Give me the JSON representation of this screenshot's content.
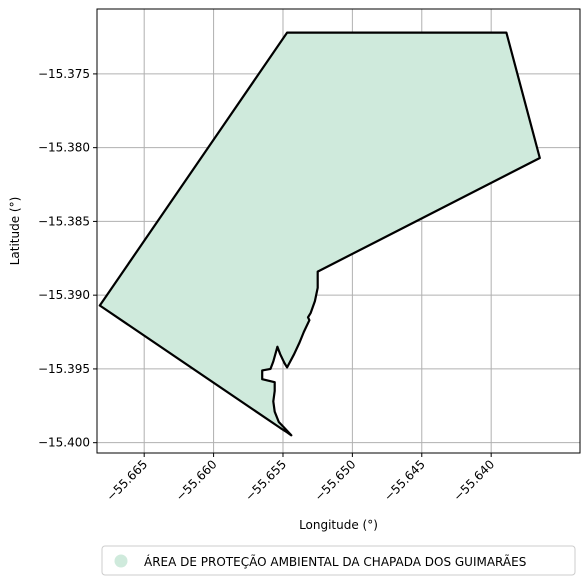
{
  "chart_data": {
    "type": "map",
    "xlabel": "Longitude (°)",
    "ylabel": "Latitude (°)",
    "xlim": [
      -55.6684,
      -55.6336
    ],
    "ylim": [
      -15.4007,
      -15.3706
    ],
    "grid": true,
    "x_ticks": [
      -55.665,
      -55.66,
      -55.655,
      -55.65,
      -55.645,
      -55.64
    ],
    "x_tick_labels": [
      "−55.665",
      "−55.660",
      "−55.655",
      "−55.650",
      "−55.645",
      "−55.640"
    ],
    "y_ticks": [
      -15.375,
      -15.38,
      -15.385,
      -15.39,
      -15.395,
      -15.4
    ],
    "y_tick_labels": [
      "−15.375",
      "−15.380",
      "−15.385",
      "−15.390",
      "−15.395",
      "−15.400"
    ],
    "legend_position": "bottom-center",
    "series": [
      {
        "name": "ÁREA DE PROTEÇÃO AMBIENTAL DA CHAPADA DOS GUIMARÃES",
        "fill_color": "#cfeadc",
        "edge_color": "#000000",
        "boundary": [
          [
            -55.6547,
            -15.3722
          ],
          [
            -55.6389,
            -15.3722
          ],
          [
            -55.6365,
            -15.3807
          ],
          [
            -55.6525,
            -15.3884
          ],
          [
            -55.6525,
            -15.3895
          ],
          [
            -55.6527,
            -15.3904
          ],
          [
            -55.653,
            -15.3912
          ],
          [
            -55.6532,
            -15.3915
          ],
          [
            -55.6531,
            -15.3917
          ],
          [
            -55.6535,
            -15.3925
          ],
          [
            -55.6538,
            -15.3932
          ],
          [
            -55.6542,
            -15.394
          ],
          [
            -55.6547,
            -15.3949
          ],
          [
            -55.6549,
            -15.3946
          ],
          [
            -55.6552,
            -15.394
          ],
          [
            -55.6554,
            -15.3935
          ],
          [
            -55.6557,
            -15.3945
          ],
          [
            -55.6559,
            -15.395
          ],
          [
            -55.6565,
            -15.3951
          ],
          [
            -55.6565,
            -15.3957
          ],
          [
            -55.6556,
            -15.3959
          ],
          [
            -55.6556,
            -15.3965
          ],
          [
            -55.6557,
            -15.3972
          ],
          [
            -55.6556,
            -15.3979
          ],
          [
            -55.6553,
            -15.3986
          ],
          [
            -55.6548,
            -15.3991
          ],
          [
            -55.6544,
            -15.3995
          ],
          [
            -55.6547,
            -15.3993
          ],
          [
            -55.6552,
            -15.399
          ],
          [
            -55.6682,
            -15.3907
          ],
          [
            -55.6547,
            -15.3722
          ]
        ]
      }
    ]
  }
}
